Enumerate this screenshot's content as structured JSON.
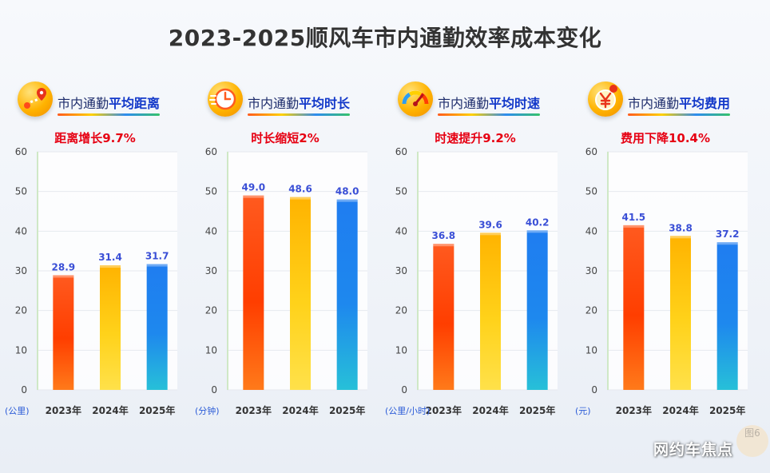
{
  "title": "2023-2025顺风车市内通勤效率成本变化",
  "source_mark": "网约车焦点",
  "figure_tag": "图6",
  "colors": {
    "bar_2023": [
      "#ff5a1f",
      "#ff3e00",
      "#ff7a1a"
    ],
    "bar_2024": [
      "#ffb300",
      "#ffd21a",
      "#ffe14a"
    ],
    "bar_2025": [
      "#1f7df0",
      "#1e88ee",
      "#27c0d8"
    ],
    "value_label": "#3a4fd6",
    "subtitle": "#e60012"
  },
  "panels": [
    {
      "icon": "route-pin-icon",
      "head_prefix": "市内通勤",
      "head_bold": "平均距离",
      "subtitle": "距离增长9.7%",
      "unit": "(公里)"
    },
    {
      "icon": "clock-icon",
      "head_prefix": "市内通勤",
      "head_bold": "平均时长",
      "subtitle": "时长缩短2%",
      "unit": "(分钟)"
    },
    {
      "icon": "speedometer-icon",
      "head_prefix": "市内通勤",
      "head_bold": "平均时速",
      "subtitle": "时速提升9.2%",
      "unit": "(公里/小时)"
    },
    {
      "icon": "yen-coin-icon",
      "head_prefix": "市内通勤",
      "head_bold": "平均费用",
      "subtitle": "费用下降10.4%",
      "unit": "(元)"
    }
  ],
  "chart_data": [
    {
      "type": "bar",
      "title": "市内通勤平均距离",
      "subtitle": "距离增长9.7%",
      "categories": [
        "2023年",
        "2024年",
        "2025年"
      ],
      "values": [
        28.9,
        31.4,
        31.7
      ],
      "ylabel": "(公里)",
      "ylim": [
        0,
        60
      ],
      "yticks": [
        0,
        10,
        20,
        30,
        40,
        50,
        60
      ]
    },
    {
      "type": "bar",
      "title": "市内通勤平均时长",
      "subtitle": "时长缩短2%",
      "categories": [
        "2023年",
        "2024年",
        "2025年"
      ],
      "values": [
        49.0,
        48.6,
        48.0
      ],
      "ylabel": "(分钟)",
      "ylim": [
        0,
        60
      ],
      "yticks": [
        0,
        10,
        20,
        30,
        40,
        50,
        60
      ]
    },
    {
      "type": "bar",
      "title": "市内通勤平均时速",
      "subtitle": "时速提升9.2%",
      "categories": [
        "2023年",
        "2024年",
        "2025年"
      ],
      "values": [
        36.8,
        39.6,
        40.2
      ],
      "ylabel": "(公里/小时)",
      "ylim": [
        0,
        60
      ],
      "yticks": [
        0,
        10,
        20,
        30,
        40,
        50,
        60
      ]
    },
    {
      "type": "bar",
      "title": "市内通勤平均费用",
      "subtitle": "费用下降10.4%",
      "categories": [
        "2023年",
        "2024年",
        "2025年"
      ],
      "values": [
        41.5,
        38.8,
        37.2
      ],
      "ylabel": "(元)",
      "ylim": [
        0,
        60
      ],
      "yticks": [
        0,
        10,
        20,
        30,
        40,
        50,
        60
      ]
    }
  ]
}
